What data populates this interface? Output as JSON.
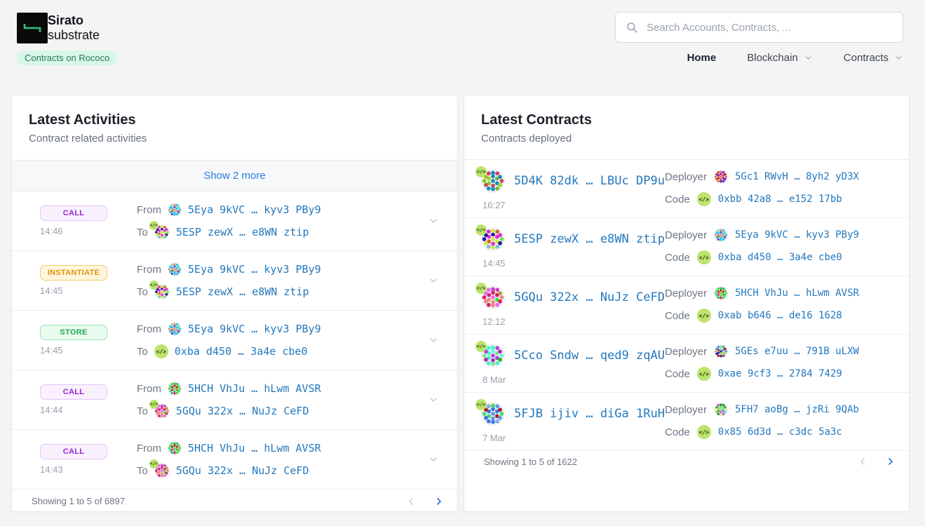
{
  "header": {
    "brand_title": "Sirato",
    "brand_subtitle": "substrate",
    "network_badge": "Contracts on Rococo",
    "search_placeholder": "Search Accounts, Contracts, ...",
    "nav": [
      {
        "label": "Home",
        "active": true,
        "has_dropdown": false
      },
      {
        "label": "Blockchain",
        "active": false,
        "has_dropdown": true
      },
      {
        "label": "Contracts",
        "active": false,
        "has_dropdown": true
      }
    ]
  },
  "labels": {
    "from": "From",
    "to": "To"
  },
  "icons": {
    "code_glyph": "</>"
  },
  "activities_panel": {
    "title": "Latest Activities",
    "subtitle": "Contract related activities",
    "show_more_label": "Show 2 more",
    "rows": [
      {
        "type": "CALL",
        "time": "14:46",
        "from": "5Eya 9kVC … kyv3 PBy9",
        "to": "5ESP zewX … e8WN ztip",
        "to_kind": "contract"
      },
      {
        "type": "INSTANTIATE",
        "time": "14:45",
        "from": "5Eya 9kVC … kyv3 PBy9",
        "to": "5ESP zewX … e8WN ztip",
        "to_kind": "contract"
      },
      {
        "type": "STORE",
        "time": "14:45",
        "from": "5Eya 9kVC … kyv3 PBy9",
        "to": "0xba d450 … 3a4e cbe0",
        "to_kind": "code"
      },
      {
        "type": "CALL",
        "time": "14:44",
        "from": "5HCH VhJu … hLwm AVSR",
        "to": "5GQu 322x … NuJz CeFD",
        "to_kind": "contract"
      },
      {
        "type": "CALL",
        "time": "14:43",
        "from": "5HCH VhJu … hLwm AVSR",
        "to": "5GQu 322x … NuJz CeFD",
        "to_kind": "contract"
      }
    ],
    "footer_text": "Showing 1 to 5 of 6897"
  },
  "contracts_panel": {
    "title": "Latest Contracts",
    "subtitle": "Contracts deployed",
    "deployer_label": "Deployer",
    "code_label": "Code",
    "rows": [
      {
        "address": "5D4K 82dk … LBUc DP9u",
        "time": "16:27",
        "deployer": "5Gc1 RWvH … 8yh2 yD3X",
        "code": "0xbb 42a8 … e152 17bb"
      },
      {
        "address": "5ESP zewX … e8WN ztip",
        "time": "14:45",
        "deployer": "5Eya 9kVC … kyv3 PBy9",
        "code": "0xba d450 … 3a4e cbe0"
      },
      {
        "address": "5GQu 322x … NuJz CeFD",
        "time": "12:12",
        "deployer": "5HCH VhJu … hLwm AVSR",
        "code": "0xab b646 … de16 1628"
      },
      {
        "address": "5Cco Sndw … qed9 zqAU",
        "time": "8 Mar",
        "deployer": "5GEs e7uu … 791B uLXW",
        "code": "0xae 9cf3 … 2784 7429"
      },
      {
        "address": "5FJB ijiv … diGa 1RuH",
        "time": "7 Mar",
        "deployer": "5FH7 aoBg … jzRi 9QAb",
        "code": "0x85 6d3d … c3dc 5a3c"
      }
    ],
    "footer_text": "Showing 1 to 5 of 1622"
  },
  "colors": {
    "accent_link_blue": "#2478bd",
    "action_blue": "#2b7de2",
    "badge_call_text": "#9d22d4",
    "badge_instantiate_text": "#e2920f",
    "badge_store_text": "#21a452",
    "network_badge_bg": "#d8f7e8",
    "network_badge_text": "#297a55",
    "code_icon_bg": "#bce46c",
    "logo_green": "#2ec27e",
    "page_bg": "#f4f4f5"
  }
}
